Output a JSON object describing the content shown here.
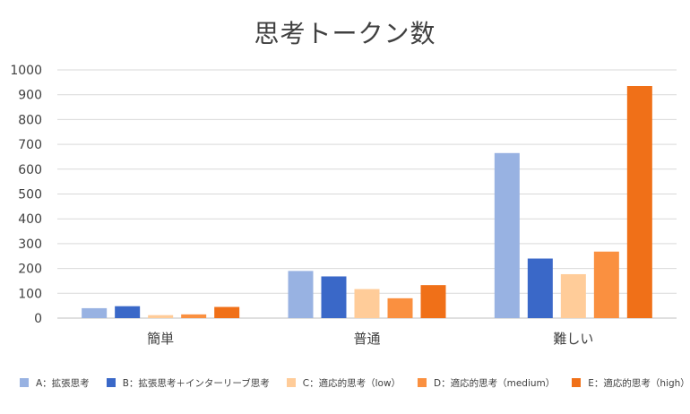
{
  "chart_data": {
    "type": "bar",
    "title": "思考トークン数",
    "categories": [
      "簡単",
      "普通",
      "難しい"
    ],
    "series": [
      {
        "name": "A：拡張思考",
        "color": "#98B2E2",
        "values": [
          40,
          190,
          665
        ]
      },
      {
        "name": "B：拡張思考＋インターリーブ思考",
        "color": "#3A68C8",
        "values": [
          48,
          168,
          240
        ]
      },
      {
        "name": "C：適応的思考（low）",
        "color": "#FFCC99",
        "values": [
          12,
          117,
          177
        ]
      },
      {
        "name": "D：適応的思考（medium）",
        "color": "#FA9040",
        "values": [
          15,
          80,
          268
        ]
      },
      {
        "name": "E：適応的思考（high）",
        "color": "#F07018",
        "values": [
          45,
          133,
          935
        ]
      }
    ],
    "ylim": [
      0,
      1000
    ],
    "yticks": [
      0,
      100,
      200,
      300,
      400,
      500,
      600,
      700,
      800,
      900,
      1000
    ],
    "grid": true,
    "legend_position": "bottom"
  }
}
